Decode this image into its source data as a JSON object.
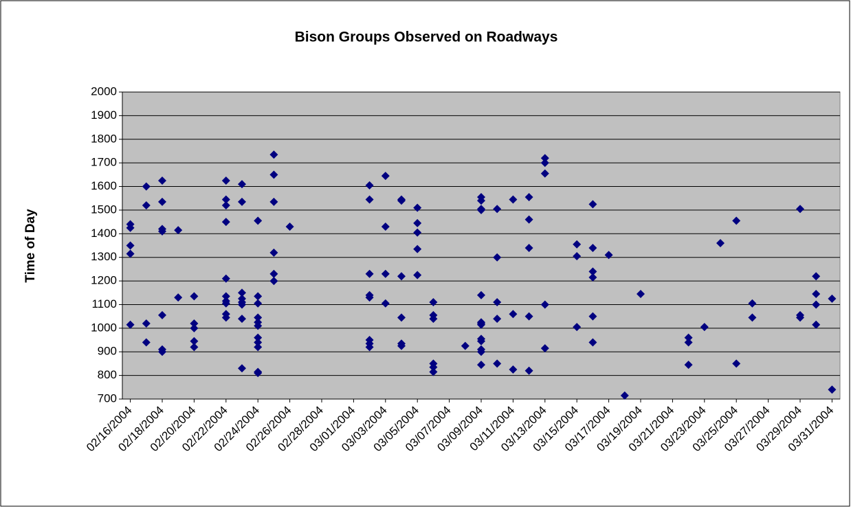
{
  "chart_data": {
    "type": "scatter",
    "title": "Bison Groups Observed on Roadways",
    "y_label": "Time of Day",
    "color": "#000080",
    "plot_background": "#c0c0c0",
    "grid": true,
    "xlim": [
      "02/16/2004",
      "03/31/2004"
    ],
    "xticks": [
      "02/16/2004",
      "02/18/2004",
      "02/20/2004",
      "02/22/2004",
      "02/24/2004",
      "02/26/2004",
      "02/28/2004",
      "03/01/2004",
      "03/03/2004",
      "03/05/2004",
      "03/07/2004",
      "03/09/2004",
      "03/11/2004",
      "03/13/2004",
      "03/15/2004",
      "03/17/2004",
      "03/19/2004",
      "03/21/2004",
      "03/23/2004",
      "03/25/2004",
      "03/27/2004",
      "03/29/2004",
      "03/31/2004"
    ],
    "ylim": [
      700,
      2000
    ],
    "yticks": [
      700,
      800,
      900,
      1000,
      1100,
      1200,
      1300,
      1400,
      1500,
      1600,
      1700,
      1800,
      1900,
      2000
    ],
    "x": [
      "02/16/2004",
      "02/16/2004",
      "02/16/2004",
      "02/16/2004",
      "02/16/2004",
      "02/17/2004",
      "02/17/2004",
      "02/17/2004",
      "02/17/2004",
      "02/18/2004",
      "02/18/2004",
      "02/18/2004",
      "02/18/2004",
      "02/18/2004",
      "02/18/2004",
      "02/18/2004",
      "02/19/2004",
      "02/19/2004",
      "02/20/2004",
      "02/20/2004",
      "02/20/2004",
      "02/20/2004",
      "02/20/2004",
      "02/22/2004",
      "02/22/2004",
      "02/22/2004",
      "02/22/2004",
      "02/22/2004",
      "02/22/2004",
      "02/22/2004",
      "02/22/2004",
      "02/22/2004",
      "02/22/2004",
      "02/23/2004",
      "02/23/2004",
      "02/23/2004",
      "02/23/2004",
      "02/23/2004",
      "02/23/2004",
      "02/23/2004",
      "02/23/2004",
      "02/24/2004",
      "02/24/2004",
      "02/24/2004",
      "02/24/2004",
      "02/24/2004",
      "02/24/2004",
      "02/24/2004",
      "02/24/2004",
      "02/24/2004",
      "02/24/2004",
      "02/24/2004",
      "02/25/2004",
      "02/25/2004",
      "02/25/2004",
      "02/25/2004",
      "02/25/2004",
      "02/25/2004",
      "02/26/2004",
      "03/02/2004",
      "03/02/2004",
      "03/02/2004",
      "03/02/2004",
      "03/02/2004",
      "03/02/2004",
      "03/02/2004",
      "03/02/2004",
      "03/03/2004",
      "03/03/2004",
      "03/03/2004",
      "03/03/2004",
      "03/04/2004",
      "03/04/2004",
      "03/04/2004",
      "03/04/2004",
      "03/04/2004",
      "03/04/2004",
      "03/05/2004",
      "03/05/2004",
      "03/05/2004",
      "03/05/2004",
      "03/05/2004",
      "03/06/2004",
      "03/06/2004",
      "03/06/2004",
      "03/06/2004",
      "03/06/2004",
      "03/06/2004",
      "03/08/2004",
      "03/09/2004",
      "03/09/2004",
      "03/09/2004",
      "03/09/2004",
      "03/09/2004",
      "03/09/2004",
      "03/09/2004",
      "03/09/2004",
      "03/09/2004",
      "03/09/2004",
      "03/09/2004",
      "03/09/2004",
      "03/09/2004",
      "03/10/2004",
      "03/10/2004",
      "03/10/2004",
      "03/10/2004",
      "03/10/2004",
      "03/11/2004",
      "03/11/2004",
      "03/11/2004",
      "03/12/2004",
      "03/12/2004",
      "03/12/2004",
      "03/12/2004",
      "03/12/2004",
      "03/13/2004",
      "03/13/2004",
      "03/13/2004",
      "03/13/2004",
      "03/13/2004",
      "03/15/2004",
      "03/15/2004",
      "03/15/2004",
      "03/16/2004",
      "03/16/2004",
      "03/16/2004",
      "03/16/2004",
      "03/16/2004",
      "03/16/2004",
      "03/17/2004",
      "03/18/2004",
      "03/19/2004",
      "03/22/2004",
      "03/22/2004",
      "03/22/2004",
      "03/23/2004",
      "03/24/2004",
      "03/25/2004",
      "03/25/2004",
      "03/26/2004",
      "03/26/2004",
      "03/29/2004",
      "03/29/2004",
      "03/29/2004",
      "03/30/2004",
      "03/30/2004",
      "03/30/2004",
      "03/30/2004",
      "03/31/2004",
      "03/31/2004"
    ],
    "y": [
      1440,
      1425,
      1350,
      1315,
      1015,
      1600,
      1520,
      1020,
      940,
      1625,
      1535,
      1420,
      1410,
      1055,
      910,
      900,
      1415,
      1130,
      1135,
      1020,
      1000,
      945,
      920,
      1625,
      1545,
      1520,
      1450,
      1210,
      1135,
      1115,
      1105,
      1060,
      1045,
      1610,
      1535,
      1150,
      1125,
      1110,
      1100,
      1040,
      830,
      1455,
      1135,
      1105,
      1045,
      1025,
      1010,
      960,
      940,
      920,
      815,
      810,
      1735,
      1650,
      1535,
      1320,
      1230,
      1200,
      1430,
      1605,
      1545,
      1230,
      1140,
      1130,
      950,
      935,
      920,
      1645,
      1430,
      1230,
      1105,
      1545,
      1540,
      1220,
      1045,
      935,
      925,
      1510,
      1445,
      1405,
      1335,
      1225,
      1110,
      1055,
      1040,
      850,
      835,
      815,
      925,
      1555,
      1540,
      1505,
      1500,
      1140,
      1025,
      1020,
      1015,
      955,
      945,
      910,
      900,
      845,
      1505,
      1300,
      1110,
      1040,
      850,
      1545,
      1060,
      825,
      1555,
      1460,
      1340,
      1050,
      820,
      1720,
      1700,
      1655,
      1100,
      915,
      1355,
      1305,
      1005,
      1525,
      1340,
      1240,
      1215,
      1050,
      940,
      1310,
      715,
      1145,
      960,
      940,
      845,
      1005,
      1360,
      1455,
      850,
      1105,
      1045,
      1505,
      1055,
      1045,
      1220,
      1145,
      1100,
      1015,
      1125,
      740
    ]
  }
}
